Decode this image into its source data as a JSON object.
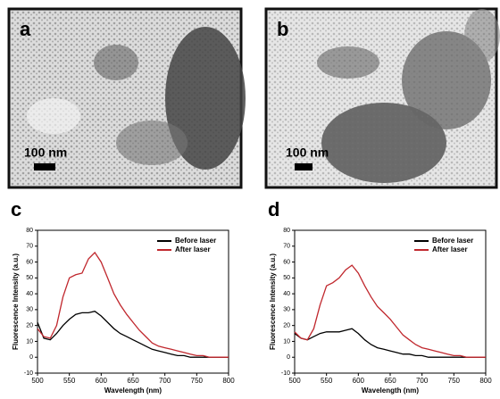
{
  "images": [
    {
      "label": "a",
      "scale_bar": "100 nm"
    },
    {
      "label": "b",
      "scale_bar": "100 nm"
    }
  ],
  "chart_data": [
    {
      "type": "line",
      "panel": "c",
      "x_label": "Wavelength (nm)",
      "y_label": "Fluorescence Intensity (a.u.)",
      "xlim": [
        500,
        800
      ],
      "xticks": [
        500,
        550,
        600,
        650,
        700,
        750,
        800
      ],
      "ylim": [
        -10,
        80
      ],
      "yticks": [
        -10,
        0,
        10,
        20,
        30,
        40,
        50,
        60,
        70,
        80
      ],
      "x": [
        500,
        510,
        520,
        530,
        540,
        550,
        560,
        570,
        580,
        590,
        600,
        610,
        620,
        630,
        640,
        650,
        660,
        670,
        680,
        690,
        700,
        710,
        720,
        730,
        740,
        750,
        760,
        770,
        780,
        790,
        800
      ],
      "series": [
        {
          "name": "Before laser",
          "color": "#000000",
          "values": [
            22,
            12,
            11,
            15,
            20,
            24,
            27,
            28,
            28,
            29,
            26,
            22,
            18,
            15,
            13,
            11,
            9,
            7,
            5,
            4,
            3,
            2,
            1,
            1,
            0,
            0,
            0,
            0,
            0,
            0,
            0
          ]
        },
        {
          "name": "After laser",
          "color": "#c0272d",
          "values": [
            18,
            13,
            12,
            20,
            38,
            50,
            52,
            53,
            62,
            66,
            60,
            50,
            40,
            33,
            27,
            22,
            17,
            13,
            9,
            7,
            6,
            5,
            4,
            3,
            2,
            1,
            1,
            0,
            0,
            0,
            0
          ]
        }
      ]
    },
    {
      "type": "line",
      "panel": "d",
      "x_label": "Wavelength (nm)",
      "y_label": "Fluorescence Intensity (a.u.)",
      "xlim": [
        500,
        800
      ],
      "xticks": [
        500,
        550,
        600,
        650,
        700,
        750,
        800
      ],
      "ylim": [
        -10,
        80
      ],
      "yticks": [
        -10,
        0,
        10,
        20,
        30,
        40,
        50,
        60,
        70,
        80
      ],
      "x": [
        500,
        510,
        520,
        530,
        540,
        550,
        560,
        570,
        580,
        590,
        600,
        610,
        620,
        630,
        640,
        650,
        660,
        670,
        680,
        690,
        700,
        710,
        720,
        730,
        740,
        750,
        760,
        770,
        780,
        790,
        800
      ],
      "series": [
        {
          "name": "Before laser",
          "color": "#000000",
          "values": [
            15,
            12,
            11,
            13,
            15,
            16,
            16,
            16,
            17,
            18,
            15,
            11,
            8,
            6,
            5,
            4,
            3,
            2,
            2,
            1,
            1,
            0,
            0,
            0,
            0,
            0,
            0,
            0,
            0,
            0,
            0
          ]
        },
        {
          "name": "After laser",
          "color": "#c0272d",
          "values": [
            16,
            12,
            11,
            18,
            33,
            45,
            47,
            50,
            55,
            58,
            53,
            45,
            38,
            32,
            28,
            24,
            19,
            14,
            11,
            8,
            6,
            5,
            4,
            3,
            2,
            1,
            1,
            0,
            0,
            0,
            0
          ]
        }
      ]
    }
  ]
}
